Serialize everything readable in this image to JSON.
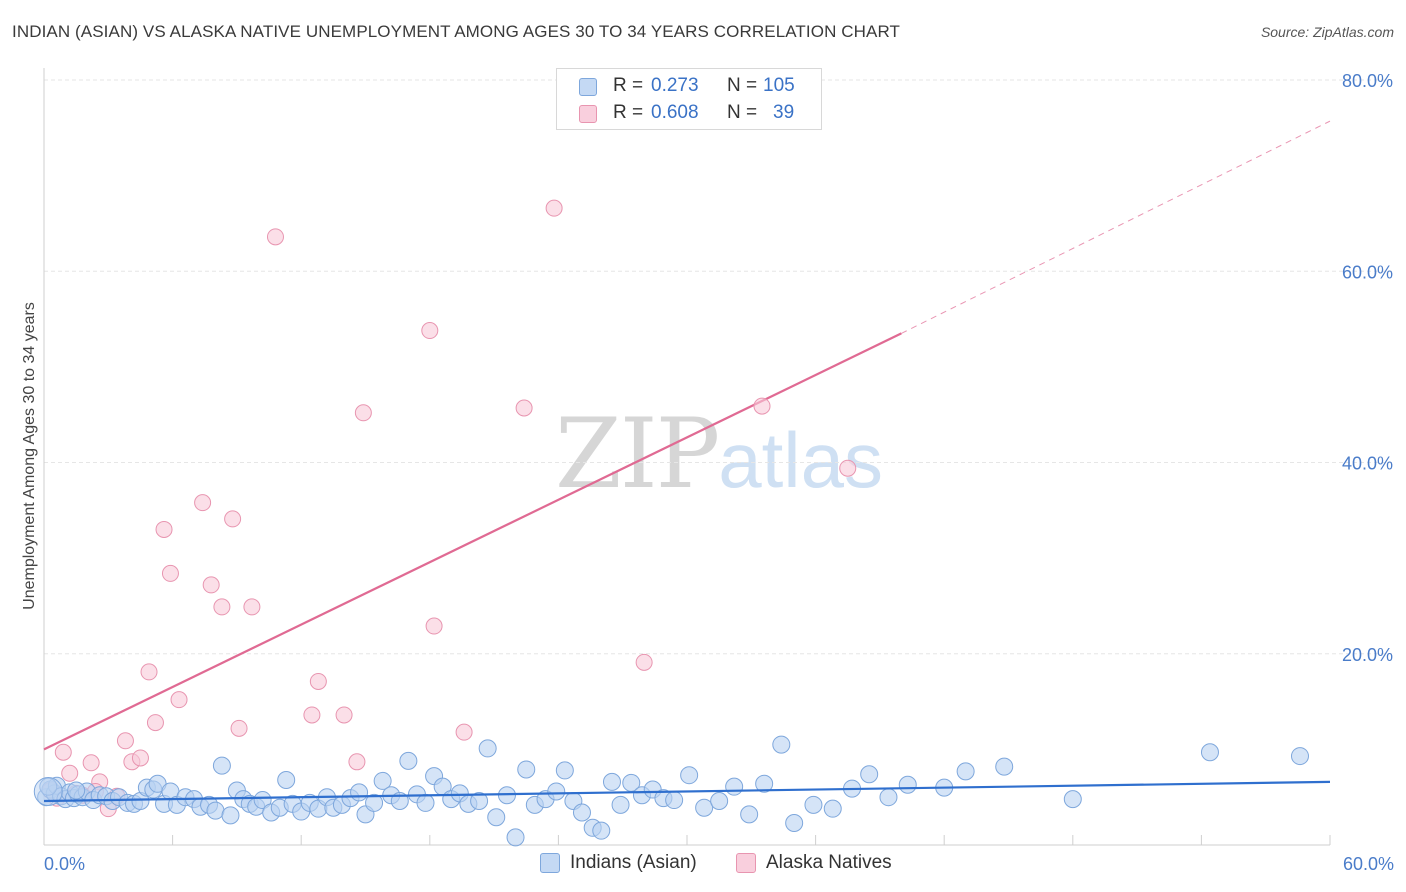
{
  "title": "INDIAN (ASIAN) VS ALASKA NATIVE UNEMPLOYMENT AMONG AGES 30 TO 34 YEARS CORRELATION CHART",
  "source": "Source: ZipAtlas.com",
  "watermark": {
    "zip": "ZIP",
    "atlas": "atlas"
  },
  "legend": {
    "series1": {
      "r_label": "R =",
      "r_value": "0.273",
      "n_label": "N =",
      "n_value": "105"
    },
    "series2": {
      "r_label": "R =",
      "r_value": "0.608",
      "n_label": "N =",
      "n_value": "39"
    }
  },
  "colors": {
    "blue_fill": "#b9d2f2",
    "blue_stroke": "#7ea7dc",
    "blue_line": "#2f6fce",
    "pink_fill": "#f8c9d8",
    "pink_stroke": "#e895b0",
    "pink_line": "#e06a93",
    "grid": "#e6e6e6",
    "tick_text": "#4a7cc9"
  },
  "chart_data": {
    "type": "scatter",
    "title": "INDIAN (ASIAN) VS ALASKA NATIVE UNEMPLOYMENT AMONG AGES 30 TO 34 YEARS CORRELATION CHART",
    "xlabel": "",
    "ylabel": "Unemployment Among Ages 30 to 34 years",
    "xlim": [
      0,
      60
    ],
    "ylim": [
      0,
      80
    ],
    "x_ticks": [
      "0.0%",
      "60.0%"
    ],
    "y_ticks": [
      "20.0%",
      "40.0%",
      "60.0%",
      "80.0%"
    ],
    "legend_position": "top-center",
    "series": [
      {
        "name": "Indians (Asian)",
        "r": 0.273,
        "n": 105,
        "trend": {
          "x": [
            0,
            60
          ],
          "y": [
            4.6,
            6.6
          ]
        },
        "points": [
          [
            0.1,
            5.0
          ],
          [
            0.3,
            5.8
          ],
          [
            0.5,
            5.4
          ],
          [
            0.6,
            6.2
          ],
          [
            0.8,
            5.1
          ],
          [
            1.0,
            4.8
          ],
          [
            1.2,
            5.5
          ],
          [
            1.4,
            4.9
          ],
          [
            1.6,
            5.3
          ],
          [
            1.8,
            5.0
          ],
          [
            2.0,
            5.6
          ],
          [
            2.3,
            4.7
          ],
          [
            2.6,
            5.2
          ],
          [
            2.9,
            5.1
          ],
          [
            3.2,
            4.6
          ],
          [
            3.5,
            5.0
          ],
          [
            3.9,
            4.4
          ],
          [
            4.2,
            4.3
          ],
          [
            4.5,
            4.6
          ],
          [
            4.8,
            6.0
          ],
          [
            5.1,
            5.8
          ],
          [
            5.3,
            6.4
          ],
          [
            5.6,
            4.3
          ],
          [
            5.9,
            5.6
          ],
          [
            6.2,
            4.2
          ],
          [
            6.6,
            5.0
          ],
          [
            7.0,
            4.8
          ],
          [
            7.3,
            4.0
          ],
          [
            7.7,
            4.2
          ],
          [
            8.0,
            3.6
          ],
          [
            8.3,
            8.3
          ],
          [
            8.7,
            3.1
          ],
          [
            9.0,
            5.7
          ],
          [
            9.3,
            4.8
          ],
          [
            9.6,
            4.3
          ],
          [
            9.9,
            4.0
          ],
          [
            10.2,
            4.7
          ],
          [
            10.6,
            3.4
          ],
          [
            11.0,
            3.9
          ],
          [
            11.3,
            6.8
          ],
          [
            11.6,
            4.3
          ],
          [
            12.0,
            3.5
          ],
          [
            12.4,
            4.4
          ],
          [
            12.8,
            3.8
          ],
          [
            13.2,
            5.0
          ],
          [
            13.5,
            3.9
          ],
          [
            13.9,
            4.2
          ],
          [
            14.3,
            4.9
          ],
          [
            14.7,
            5.5
          ],
          [
            15.0,
            3.2
          ],
          [
            15.4,
            4.4
          ],
          [
            15.8,
            6.7
          ],
          [
            16.2,
            5.2
          ],
          [
            16.6,
            4.6
          ],
          [
            17.0,
            8.8
          ],
          [
            17.4,
            5.3
          ],
          [
            17.8,
            4.4
          ],
          [
            18.2,
            7.2
          ],
          [
            18.6,
            6.1
          ],
          [
            19.0,
            4.8
          ],
          [
            19.4,
            5.4
          ],
          [
            19.8,
            4.3
          ],
          [
            20.3,
            4.6
          ],
          [
            20.7,
            10.1
          ],
          [
            21.1,
            2.9
          ],
          [
            21.6,
            5.2
          ],
          [
            22.0,
            0.8
          ],
          [
            22.5,
            7.9
          ],
          [
            22.9,
            4.2
          ],
          [
            23.4,
            4.8
          ],
          [
            23.9,
            5.6
          ],
          [
            24.3,
            7.8
          ],
          [
            24.7,
            4.6
          ],
          [
            25.1,
            3.4
          ],
          [
            25.6,
            1.8
          ],
          [
            26.0,
            1.5
          ],
          [
            26.5,
            6.6
          ],
          [
            26.9,
            4.2
          ],
          [
            27.4,
            6.5
          ],
          [
            27.9,
            5.2
          ],
          [
            28.4,
            5.8
          ],
          [
            28.9,
            4.9
          ],
          [
            29.4,
            4.7
          ],
          [
            30.1,
            7.3
          ],
          [
            30.8,
            3.9
          ],
          [
            31.5,
            4.6
          ],
          [
            32.2,
            6.1
          ],
          [
            32.9,
            3.2
          ],
          [
            33.6,
            6.4
          ],
          [
            34.4,
            10.5
          ],
          [
            35.0,
            2.3
          ],
          [
            35.9,
            4.2
          ],
          [
            36.8,
            3.8
          ],
          [
            37.7,
            5.9
          ],
          [
            38.5,
            7.4
          ],
          [
            39.4,
            5.0
          ],
          [
            40.3,
            6.3
          ],
          [
            42.0,
            6.0
          ],
          [
            43.0,
            7.7
          ],
          [
            44.8,
            8.2
          ],
          [
            48.0,
            4.8
          ],
          [
            54.4,
            9.7
          ],
          [
            58.6,
            9.3
          ],
          [
            0.2,
            6.1
          ],
          [
            1.5,
            5.7
          ]
        ]
      },
      {
        "name": "Alaska Natives",
        "r": 0.608,
        "n": 39,
        "trend": {
          "x": [
            0,
            40
          ],
          "y": [
            10.0,
            53.5
          ]
        },
        "trend_dashed": {
          "x": [
            40,
            60
          ],
          "y": [
            53.5,
            75.7
          ]
        },
        "points": [
          [
            0.3,
            5.7
          ],
          [
            0.6,
            4.9
          ],
          [
            0.9,
            9.7
          ],
          [
            1.2,
            7.5
          ],
          [
            1.5,
            5.4
          ],
          [
            1.8,
            5.2
          ],
          [
            2.2,
            8.6
          ],
          [
            2.6,
            6.6
          ],
          [
            3.0,
            3.8
          ],
          [
            3.4,
            5.1
          ],
          [
            3.8,
            10.9
          ],
          [
            4.1,
            8.7
          ],
          [
            4.5,
            9.1
          ],
          [
            4.9,
            18.1
          ],
          [
            5.2,
            12.8
          ],
          [
            5.6,
            33.0
          ],
          [
            5.9,
            28.4
          ],
          [
            6.3,
            15.2
          ],
          [
            7.4,
            35.8
          ],
          [
            7.8,
            27.2
          ],
          [
            8.3,
            24.9
          ],
          [
            8.8,
            34.1
          ],
          [
            9.1,
            12.2
          ],
          [
            9.7,
            24.9
          ],
          [
            10.8,
            63.6
          ],
          [
            12.5,
            13.6
          ],
          [
            12.8,
            17.1
          ],
          [
            14.0,
            13.6
          ],
          [
            14.9,
            45.2
          ],
          [
            14.6,
            8.7
          ],
          [
            18.0,
            53.8
          ],
          [
            18.2,
            22.9
          ],
          [
            19.6,
            11.8
          ],
          [
            22.4,
            45.7
          ],
          [
            23.8,
            66.6
          ],
          [
            28.0,
            19.1
          ],
          [
            33.5,
            45.9
          ],
          [
            37.5,
            39.4
          ],
          [
            2.4,
            5.6
          ]
        ]
      }
    ]
  },
  "bottom_legend": {
    "series1": "Indians (Asian)",
    "series2": "Alaska Natives"
  }
}
